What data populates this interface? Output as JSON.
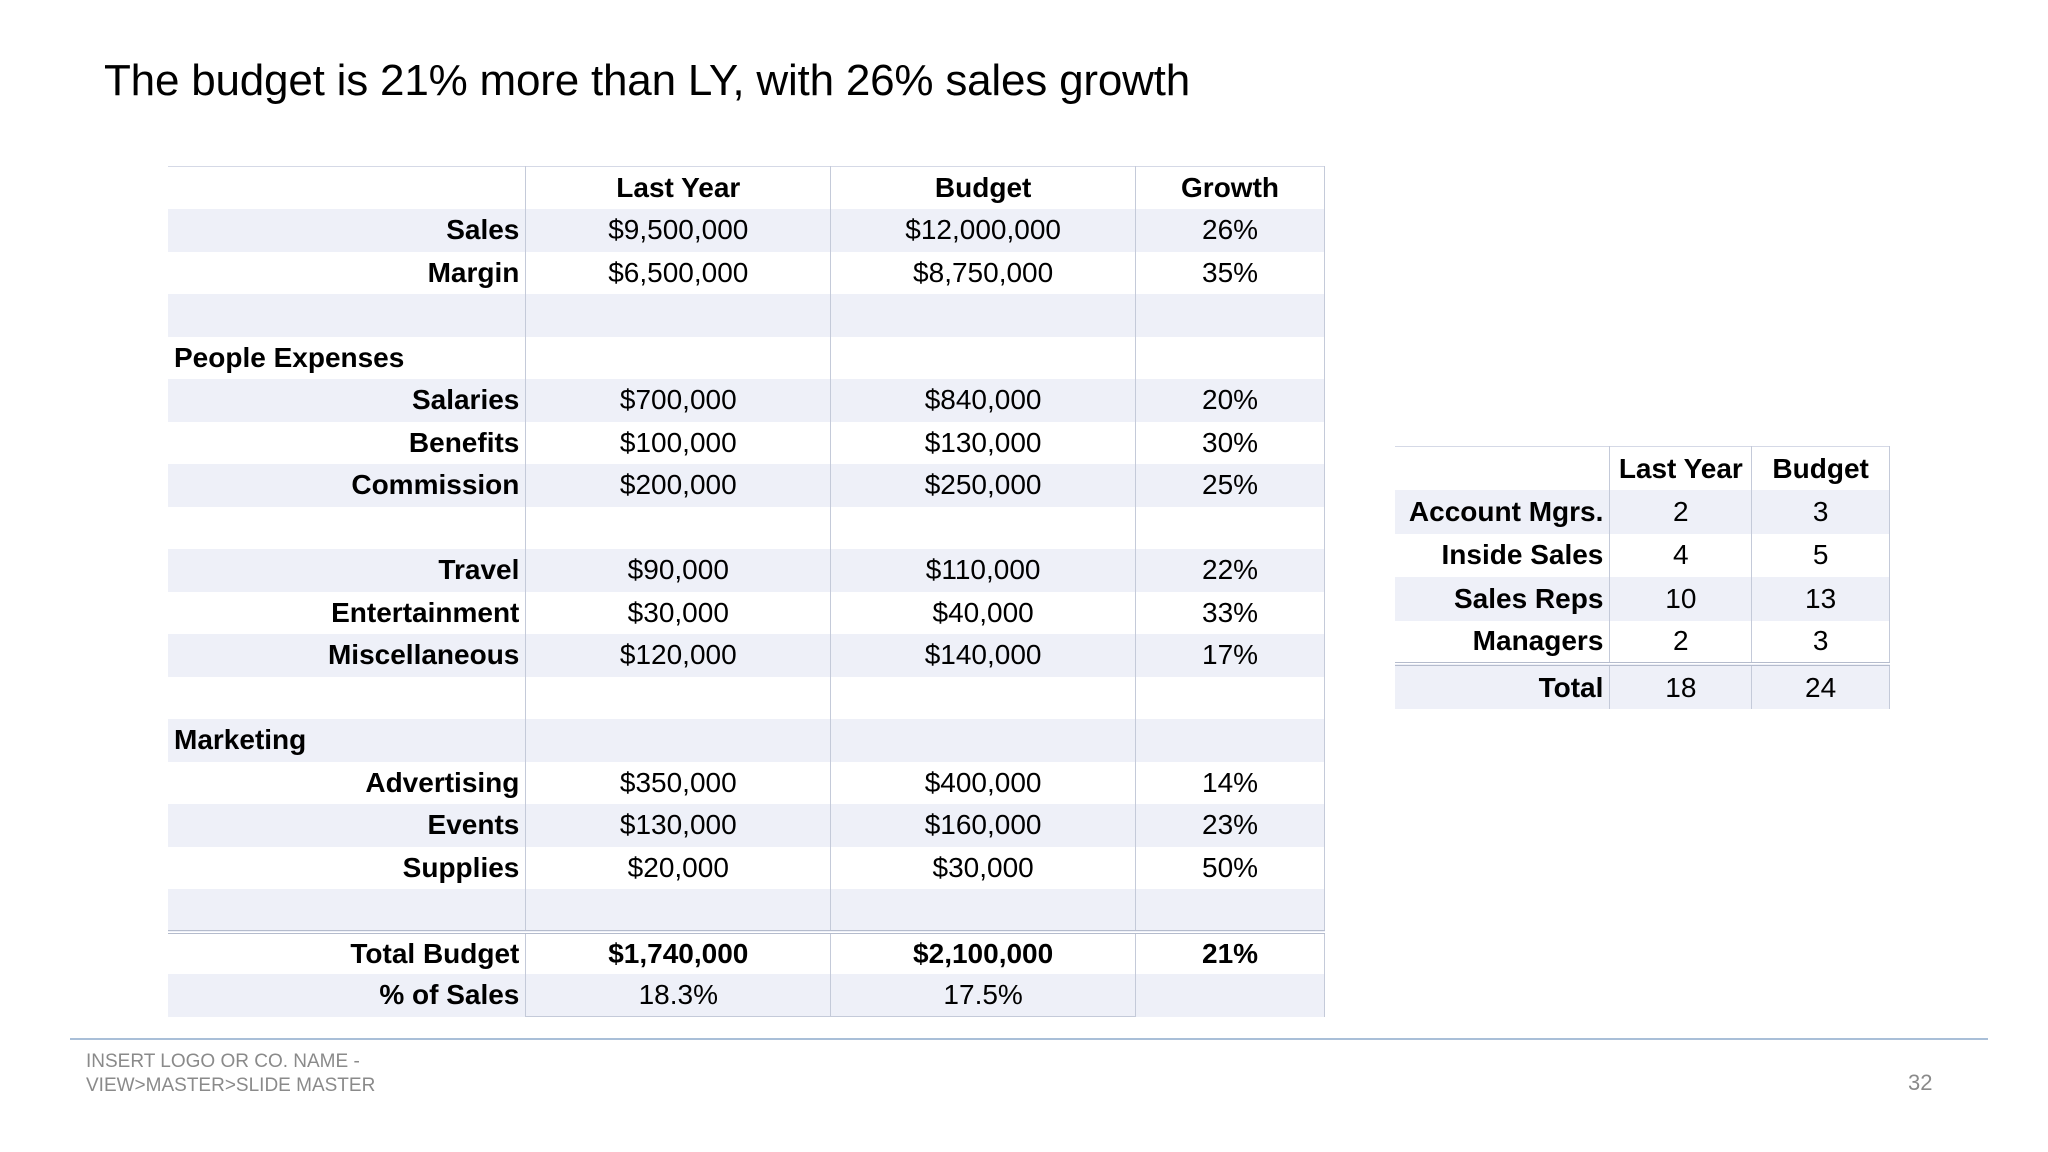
{
  "slide": {
    "title": "The budget is 21% more than LY, with 26% sales growth",
    "footer_line1": "INSERT LOGO OR CO. NAME -",
    "footer_line2": "VIEW>MASTER>SLIDE MASTER",
    "page_number": "32"
  },
  "budget_table": {
    "headers": [
      "",
      "Last Year",
      "Budget",
      "Growth"
    ],
    "rows": {
      "sales": {
        "label": "Sales",
        "last_year": "$9,500,000",
        "budget": "$12,000,000",
        "growth": "26%"
      },
      "margin": {
        "label": "Margin",
        "last_year": "$6,500,000",
        "budget": "$8,750,000",
        "growth": "35%"
      },
      "people_expenses": {
        "label": "People Expenses"
      },
      "salaries": {
        "label": "Salaries",
        "last_year": "$700,000",
        "budget": "$840,000",
        "growth": "20%"
      },
      "benefits": {
        "label": "Benefits",
        "last_year": "$100,000",
        "budget": "$130,000",
        "growth": "30%"
      },
      "commission": {
        "label": "Commission",
        "last_year": "$200,000",
        "budget": "$250,000",
        "growth": "25%"
      },
      "travel": {
        "label": "Travel",
        "last_year": "$90,000",
        "budget": "$110,000",
        "growth": "22%"
      },
      "entertainment": {
        "label": "Entertainment",
        "last_year": "$30,000",
        "budget": "$40,000",
        "growth": "33%"
      },
      "miscellaneous": {
        "label": "Miscellaneous",
        "last_year": "$120,000",
        "budget": "$140,000",
        "growth": "17%"
      },
      "marketing": {
        "label": "Marketing"
      },
      "advertising": {
        "label": "Advertising",
        "last_year": "$350,000",
        "budget": "$400,000",
        "growth": "14%"
      },
      "events": {
        "label": "Events",
        "last_year": "$130,000",
        "budget": "$160,000",
        "growth": "23%"
      },
      "supplies": {
        "label": "Supplies",
        "last_year": "$20,000",
        "budget": "$30,000",
        "growth": "50%"
      },
      "total_budget": {
        "label": "Total Budget",
        "last_year": "$1,740,000",
        "budget": "$2,100,000",
        "growth": "21%"
      },
      "pct_of_sales": {
        "label": "% of Sales",
        "last_year": "18.3%",
        "budget": "17.5%"
      }
    }
  },
  "staff_table": {
    "headers": [
      "",
      "Last Year",
      "Budget"
    ],
    "rows": {
      "account_mgrs": {
        "label": "Account Mgrs.",
        "last_year": "2",
        "budget": "3"
      },
      "inside_sales": {
        "label": "Inside Sales",
        "last_year": "4",
        "budget": "5"
      },
      "sales_reps": {
        "label": "Sales Reps",
        "last_year": "10",
        "budget": "13"
      },
      "managers": {
        "label": "Managers",
        "last_year": "2",
        "budget": "3"
      },
      "total": {
        "label": "Total",
        "last_year": "18",
        "budget": "24"
      }
    }
  },
  "colors": {
    "row_band": "#eef0f8",
    "grid_line": "#c4cad9",
    "footer_rule": "#a9bfd8",
    "footer_text": "#8a8a8a"
  }
}
